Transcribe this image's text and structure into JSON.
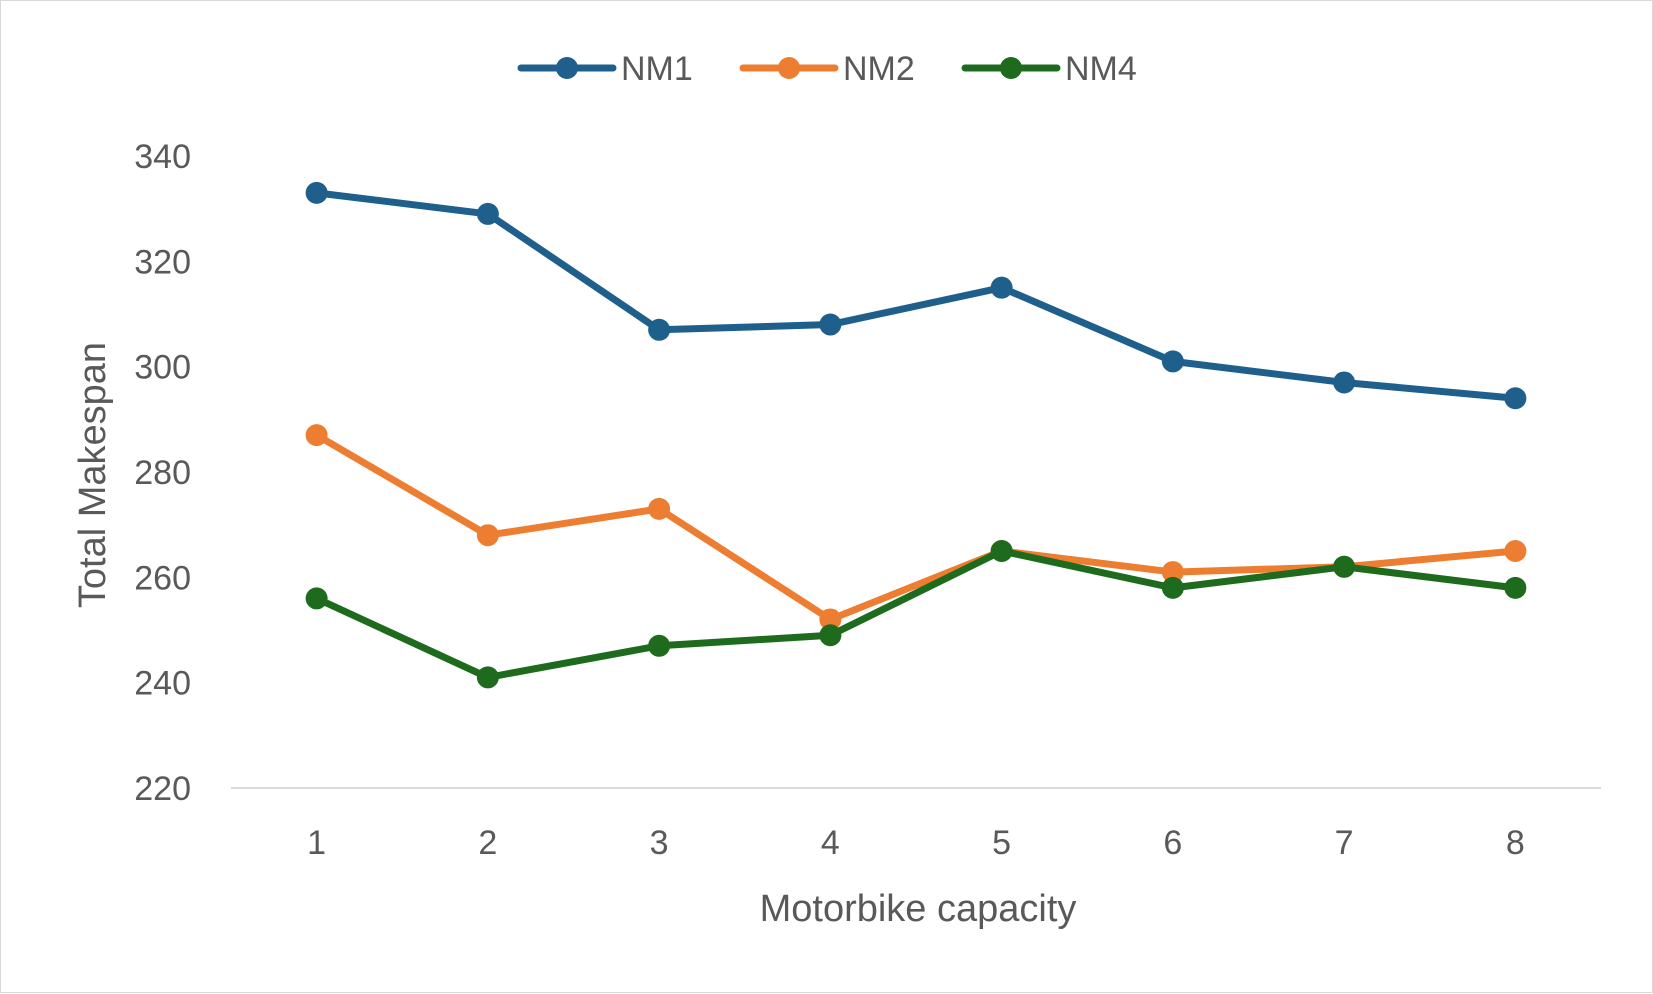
{
  "chart_data": {
    "type": "line",
    "title": "",
    "xlabel": "Motorbike capacity",
    "ylabel": "Total Makespan",
    "categories": [
      "1",
      "2",
      "3",
      "4",
      "5",
      "6",
      "7",
      "8"
    ],
    "ylim": [
      220,
      340
    ],
    "yticks": [
      "220",
      "240",
      "260",
      "280",
      "300",
      "320",
      "340"
    ],
    "grid": false,
    "legend_position": "top",
    "series": [
      {
        "name": "NM1",
        "color": "#1f5f8b",
        "values": [
          333,
          329,
          307,
          308,
          315,
          301,
          297,
          294
        ]
      },
      {
        "name": "NM2",
        "color": "#ed7d31",
        "values": [
          287,
          268,
          273,
          252,
          265,
          261,
          262,
          265
        ]
      },
      {
        "name": "NM4",
        "color": "#1e6b1e",
        "values": [
          256,
          241,
          247,
          249,
          265,
          258,
          262,
          258
        ]
      }
    ]
  }
}
